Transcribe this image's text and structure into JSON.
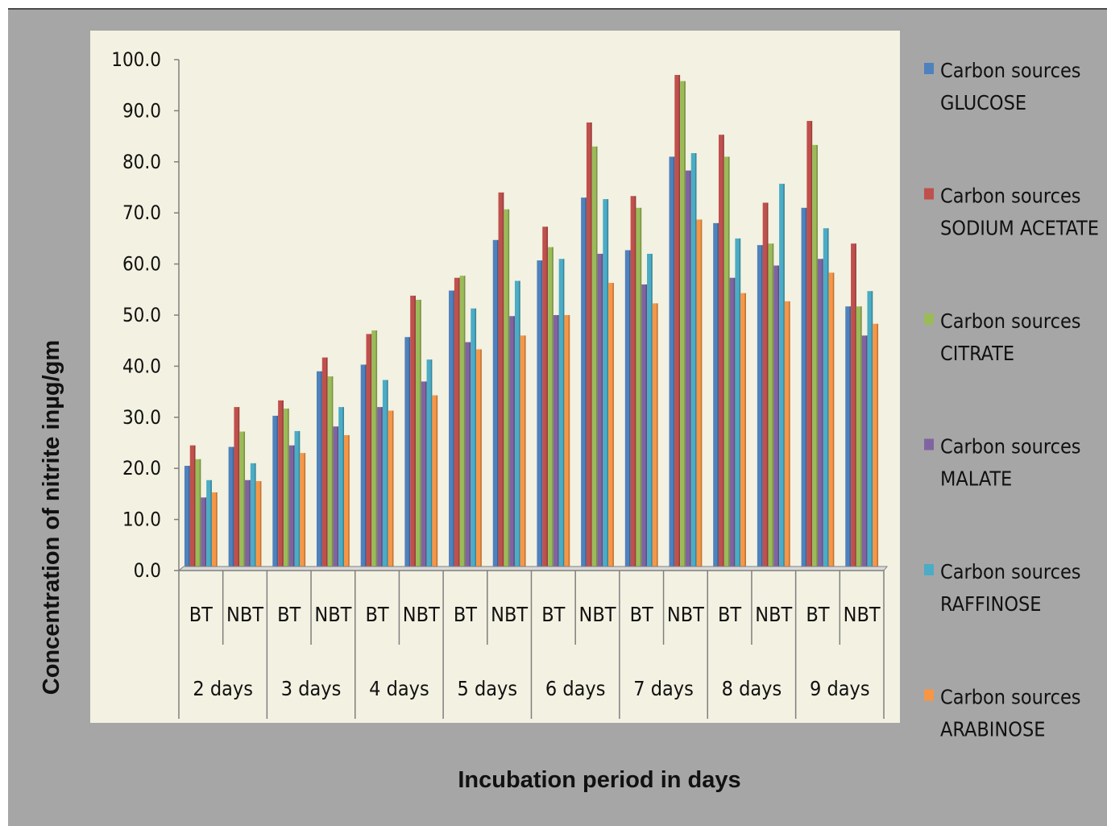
{
  "chart_data": {
    "type": "bar",
    "title": "",
    "xlabel": "Incubation period in days",
    "ylabel": "Concentration of nitrite inµg/gm",
    "ylim": [
      0,
      100
    ],
    "yticks": [
      "0.0",
      "10.0",
      "20.0",
      "30.0",
      "40.0",
      "50.0",
      "60.0",
      "70.0",
      "80.0",
      "90.0",
      "100.0"
    ],
    "groups": [
      "2 days",
      "3 days",
      "4 days",
      "5 days",
      "6 days",
      "7 days",
      "8 days",
      "9 days"
    ],
    "subcategories": [
      "BT",
      "NBT"
    ],
    "categories": [
      "2 days BT",
      "2 days NBT",
      "3 days BT",
      "3 days NBT",
      "4 days BT",
      "4 days NBT",
      "5 days BT",
      "5 days NBT",
      "6 days BT",
      "6 days NBT",
      "7 days BT",
      "7 days NBT",
      "8 days BT",
      "8 days NBT",
      "9 days BT",
      "9 days NBT"
    ],
    "legend_position": "right",
    "series": [
      {
        "name": "Carbon sources GLUCOSE",
        "legend_lines": [
          "Carbon sources",
          "GLUCOSE"
        ],
        "color": "#4f81bd",
        "values": [
          20.5,
          24.2,
          30.3,
          39.0,
          40.3,
          45.7,
          54.8,
          64.7,
          60.7,
          73.0,
          62.7,
          81.0,
          68.0,
          63.7,
          71.0,
          51.7
        ]
      },
      {
        "name": "Carbon sources SODIUM ACETATE",
        "legend_lines": [
          "Carbon sources",
          "SODIUM ACETATE"
        ],
        "color": "#c0504d",
        "values": [
          24.5,
          32.0,
          33.3,
          41.7,
          46.3,
          53.8,
          57.3,
          74.0,
          67.3,
          87.7,
          73.3,
          97.0,
          85.3,
          72.0,
          88.0,
          64.0
        ]
      },
      {
        "name": "Carbon sources CITRATE",
        "legend_lines": [
          "Carbon sources",
          "CITRATE"
        ],
        "color": "#9bbb59",
        "values": [
          21.8,
          27.2,
          31.7,
          38.0,
          47.0,
          53.0,
          57.7,
          70.7,
          63.3,
          83.0,
          71.0,
          95.8,
          81.0,
          64.0,
          83.3,
          51.7
        ]
      },
      {
        "name": "Carbon sources MALATE",
        "legend_lines": [
          "Carbon sources",
          "MALATE"
        ],
        "color": "#8064a2",
        "values": [
          14.3,
          17.7,
          24.5,
          28.2,
          32.0,
          37.0,
          44.7,
          49.8,
          50.0,
          62.0,
          56.0,
          78.3,
          57.3,
          59.7,
          61.0,
          46.0
        ]
      },
      {
        "name": "Carbon sources RAFFINOSE",
        "legend_lines": [
          "Carbon sources",
          "RAFFINOSE"
        ],
        "color": "#4bacc6",
        "values": [
          17.7,
          21.0,
          27.3,
          32.0,
          37.3,
          41.3,
          51.3,
          56.7,
          61.0,
          72.7,
          62.0,
          81.7,
          65.0,
          75.7,
          67.0,
          54.7
        ]
      },
      {
        "name": "Carbon sources ARABINOSE",
        "legend_lines": [
          "Carbon sources",
          "ARABINOSE"
        ],
        "color": "#f79646",
        "values": [
          15.3,
          17.5,
          23.0,
          26.5,
          31.3,
          34.3,
          43.3,
          46.0,
          50.0,
          56.3,
          52.3,
          68.7,
          54.3,
          52.7,
          58.3,
          48.3
        ]
      }
    ]
  }
}
